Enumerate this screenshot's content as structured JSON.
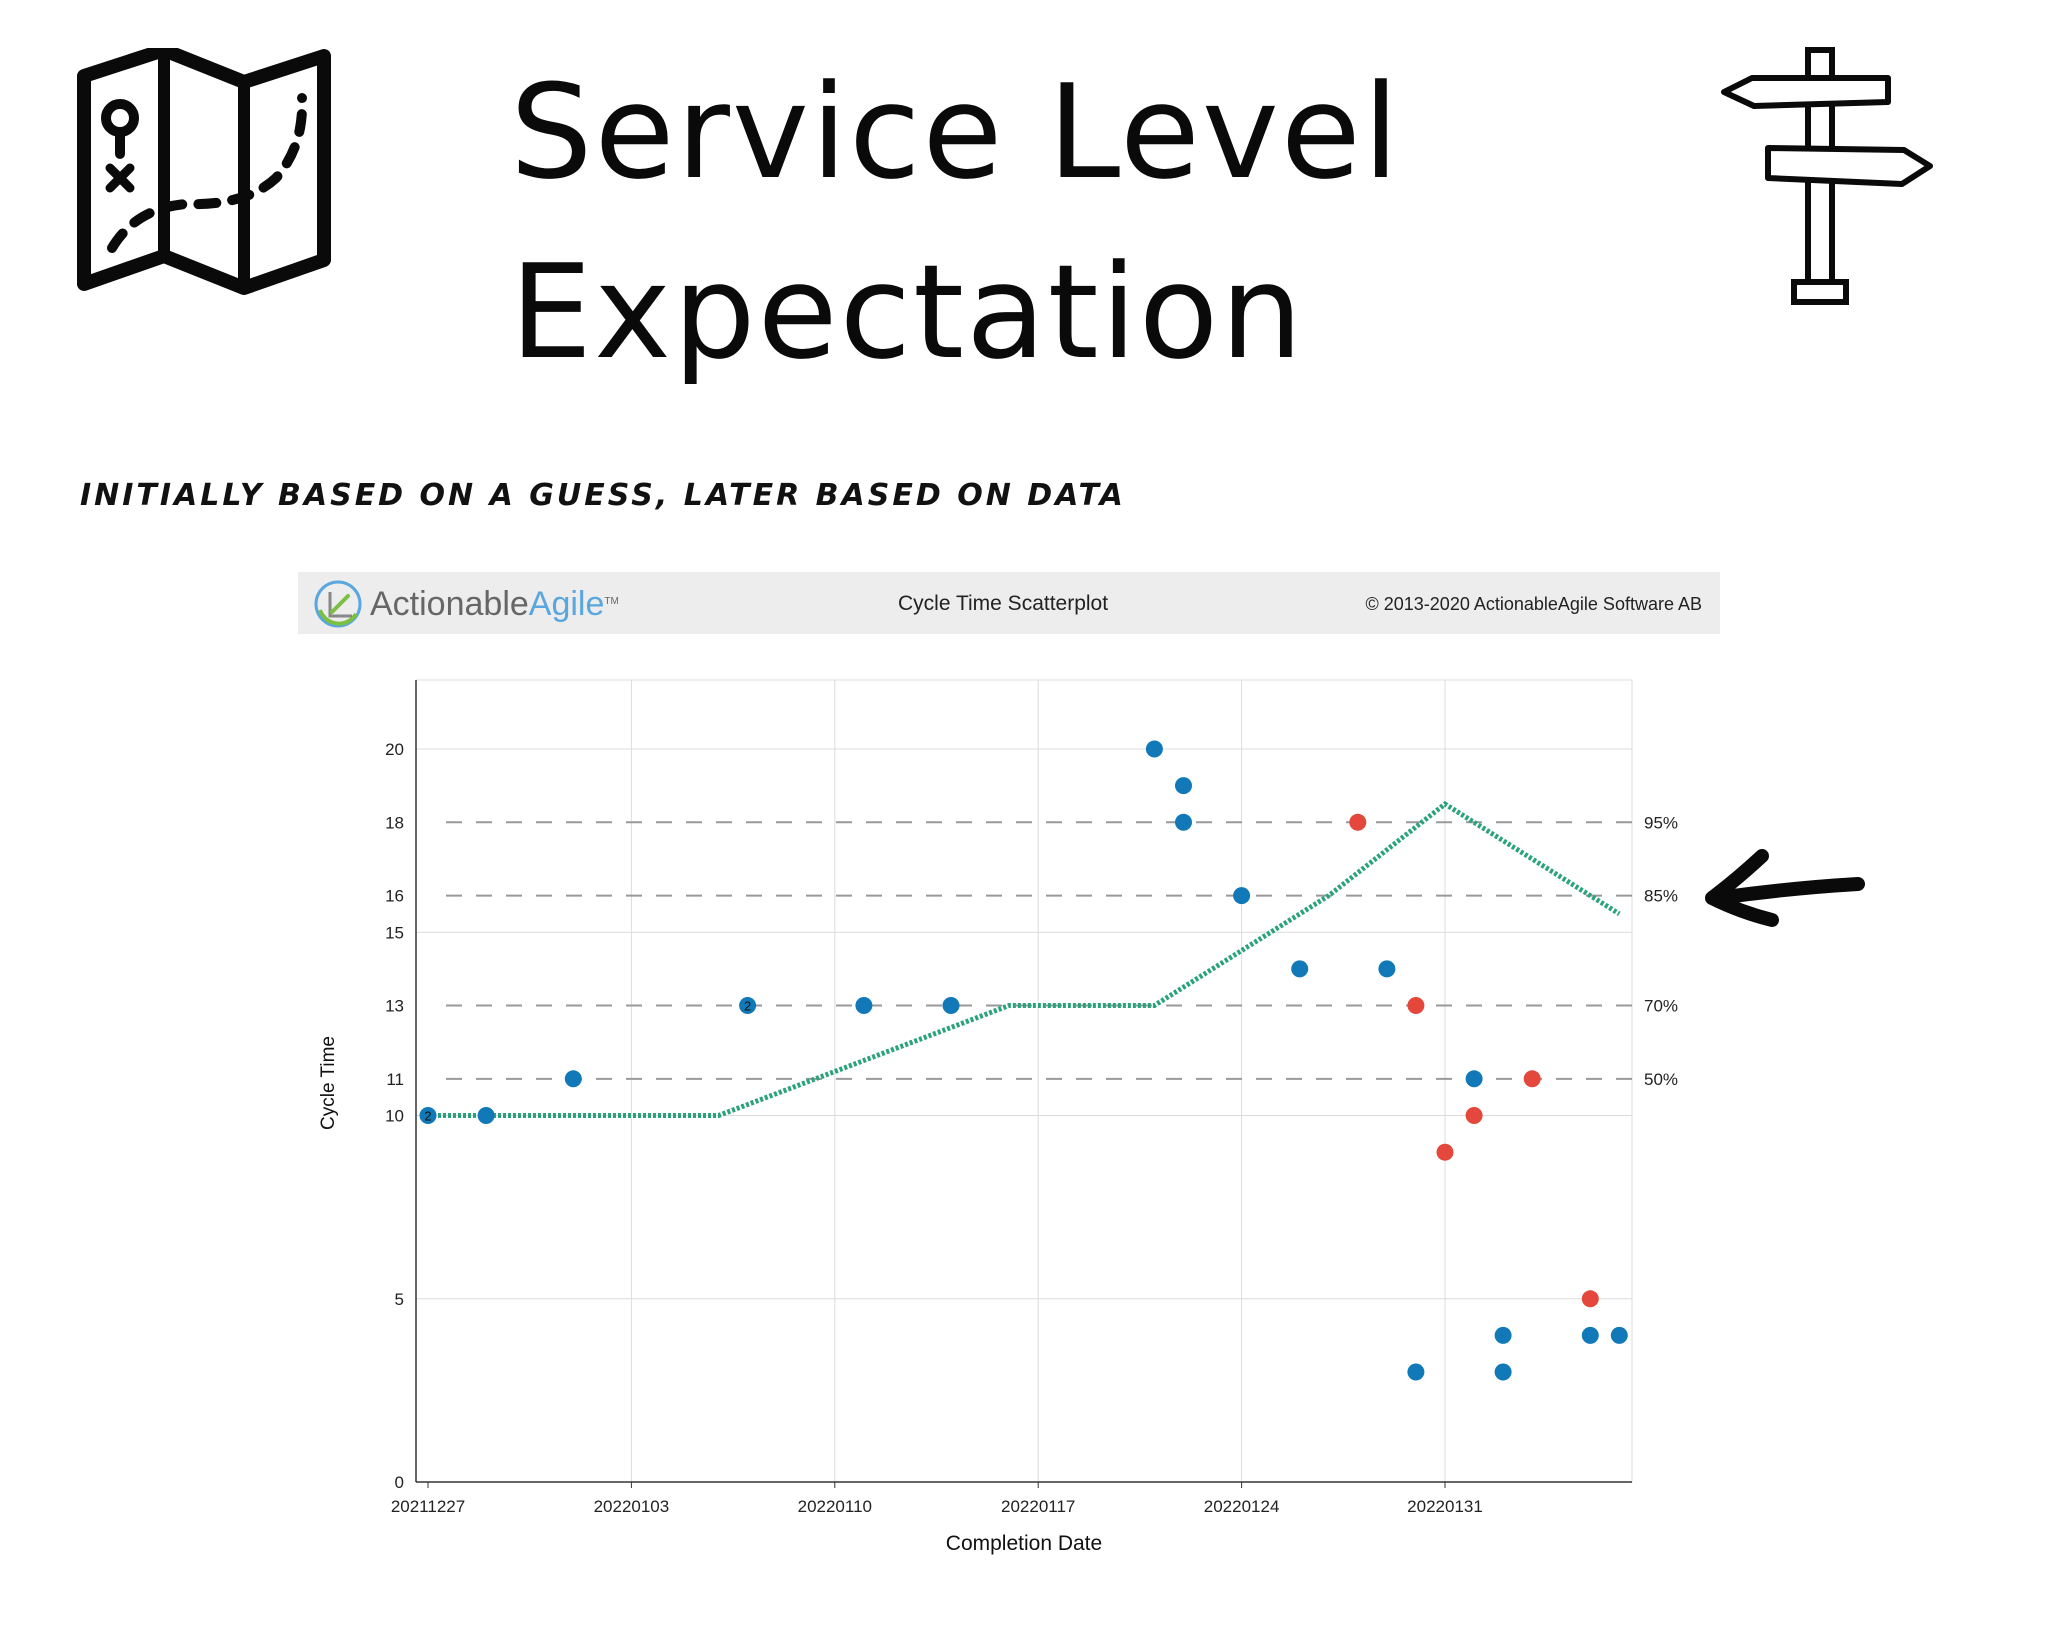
{
  "slide": {
    "title_line1": "Service Level",
    "title_line2": "Expectation",
    "subtitle": "Initially based on a guess, later based on data"
  },
  "icons": {
    "map": "map-icon",
    "signpost": "signpost-icon",
    "arrow": "arrow-left-icon",
    "logo": "actionableagile-logo-icon"
  },
  "banner": {
    "brand_part1": "Actionable",
    "brand_part2": "Agile",
    "trademark": "TM",
    "chart_title": "Cycle Time Scatterplot",
    "copyright": "© 2013-2020 ActionableAgile Software AB"
  },
  "colors": {
    "blue_point": "#1179b8",
    "red_point": "#e4473b",
    "trend_line": "#2aa37a",
    "percentile_line": "#999999",
    "logo_green": "#7bc043",
    "logo_blue": "#5aa6df"
  },
  "chart_data": {
    "type": "scatter",
    "title": "Cycle Time Scatterplot",
    "xlabel": "Completion Date",
    "ylabel": "Cycle Time",
    "x_tick_labels": [
      "20211227",
      "20220103",
      "20220110",
      "20220117",
      "20220124",
      "20220131"
    ],
    "x_range": [
      "20211227",
      "20220206"
    ],
    "y_ticks": [
      0,
      5,
      10,
      11,
      13,
      15,
      16,
      18,
      20
    ],
    "ylim": [
      0,
      22
    ],
    "grid": true,
    "percentiles": [
      {
        "label": "50%",
        "value": 11
      },
      {
        "label": "70%",
        "value": 13
      },
      {
        "label": "85%",
        "value": 16
      },
      {
        "label": "95%",
        "value": 18
      }
    ],
    "points": [
      {
        "date": "20211227",
        "y": 10,
        "status": "completed",
        "count": 2
      },
      {
        "date": "20211229",
        "y": 10,
        "status": "completed"
      },
      {
        "date": "20220101",
        "y": 11,
        "status": "completed"
      },
      {
        "date": "20220107",
        "y": 13,
        "status": "completed",
        "count": 2
      },
      {
        "date": "20220111",
        "y": 13,
        "status": "completed"
      },
      {
        "date": "20220114",
        "y": 13,
        "status": "completed"
      },
      {
        "date": "20220121",
        "y": 20,
        "status": "completed"
      },
      {
        "date": "20220122",
        "y": 19,
        "status": "completed"
      },
      {
        "date": "20220122",
        "y": 18,
        "status": "completed"
      },
      {
        "date": "20220124",
        "y": 16,
        "status": "completed"
      },
      {
        "date": "20220126",
        "y": 14,
        "status": "completed"
      },
      {
        "date": "20220128",
        "y": 18,
        "status": "exceeded"
      },
      {
        "date": "20220129",
        "y": 14,
        "status": "completed"
      },
      {
        "date": "20220130",
        "y": 13,
        "status": "exceeded"
      },
      {
        "date": "20220130",
        "y": 3,
        "status": "completed"
      },
      {
        "date": "20220131",
        "y": 9,
        "status": "exceeded"
      },
      {
        "date": "20220201",
        "y": 11,
        "status": "completed"
      },
      {
        "date": "20220201",
        "y": 10,
        "status": "exceeded"
      },
      {
        "date": "20220202",
        "y": 4,
        "status": "completed"
      },
      {
        "date": "20220202",
        "y": 3,
        "status": "completed"
      },
      {
        "date": "20220203",
        "y": 11,
        "status": "exceeded"
      },
      {
        "date": "20220205",
        "y": 5,
        "status": "exceeded"
      },
      {
        "date": "20220205",
        "y": 4,
        "status": "completed"
      },
      {
        "date": "20220206",
        "y": 4,
        "status": "completed"
      }
    ],
    "trend_line": [
      {
        "date": "20211227",
        "y": 10
      },
      {
        "date": "20220106",
        "y": 10
      },
      {
        "date": "20220116",
        "y": 13
      },
      {
        "date": "20220121",
        "y": 13
      },
      {
        "date": "20220127",
        "y": 16
      },
      {
        "date": "20220131",
        "y": 18.5
      },
      {
        "date": "20220206",
        "y": 15.5
      }
    ]
  }
}
